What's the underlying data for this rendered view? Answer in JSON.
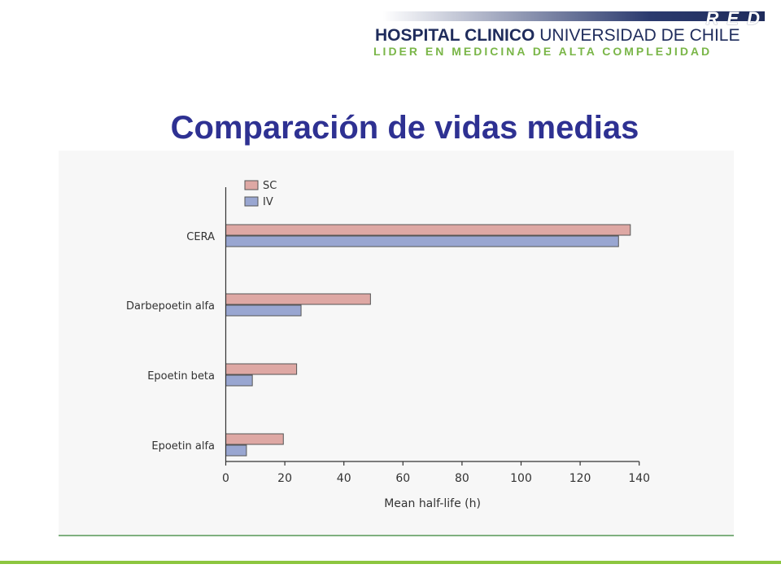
{
  "header": {
    "logo_red": "RED",
    "logo_line1_bold": "HOSPITAL CLINICO",
    "logo_line1_rest": "UNIVERSIDAD DE CHILE",
    "logo_line2": "LIDER EN MEDICINA DE ALTA COMPLEJIDAD"
  },
  "slide": {
    "title": "Comparación de vidas medias"
  },
  "colors": {
    "sc": "#dea8a4",
    "iv": "#99a6d1",
    "title": "#2e3192",
    "accent_green": "#8cc63f"
  },
  "chart_data": {
    "type": "bar",
    "orientation": "horizontal",
    "categories": [
      "CERA",
      "Darbepoetin alfa",
      "Epoetin beta",
      "Epoetin alfa"
    ],
    "series": [
      {
        "name": "SC",
        "values": [
          137,
          49,
          24,
          19.5
        ]
      },
      {
        "name": "IV",
        "values": [
          133,
          25.5,
          9,
          7
        ]
      }
    ],
    "xlabel": "Mean half-life (h)",
    "ylabel": "",
    "xlim": [
      0,
      140
    ],
    "xticks": [
      0,
      20,
      40,
      60,
      80,
      100,
      120,
      140
    ],
    "grid": false,
    "legend_position": "top-left"
  }
}
